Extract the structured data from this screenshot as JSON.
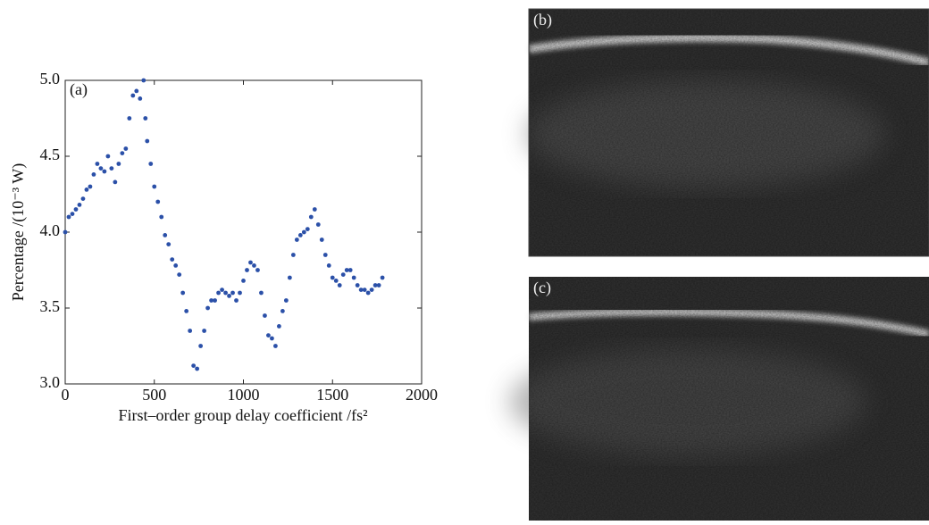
{
  "chart_data": {
    "type": "scatter",
    "panel_label": "(a)",
    "x_label": "First–order group delay coefficient /fs²",
    "y_label": "Percentage /(10⁻³ W)",
    "color": "#2b50a8",
    "xlim": [
      0,
      2000
    ],
    "xticks": [
      0,
      500,
      1000,
      1500,
      2000
    ],
    "ylim": [
      3,
      5
    ],
    "yticks": [
      {
        "value": 3,
        "label": "3.0"
      },
      3.5,
      {
        "value": 4,
        "label": "4.0"
      },
      4.5,
      {
        "value": 5,
        "label": "5.0"
      }
    ],
    "x": [
      0,
      20,
      40,
      60,
      80,
      100,
      120,
      140,
      160,
      180,
      200,
      220,
      240,
      260,
      280,
      300,
      320,
      340,
      360,
      380,
      400,
      420,
      440,
      450,
      460,
      480,
      500,
      520,
      540,
      560,
      580,
      600,
      620,
      640,
      660,
      680,
      700,
      720,
      740,
      760,
      780,
      800,
      820,
      840,
      860,
      880,
      900,
      920,
      940,
      960,
      980,
      1000,
      1020,
      1040,
      1060,
      1080,
      1100,
      1120,
      1140,
      1160,
      1180,
      1200,
      1220,
      1240,
      1260,
      1280,
      1300,
      1320,
      1340,
      1360,
      1380,
      1400,
      1420,
      1440,
      1460,
      1480,
      1500,
      1520,
      1540,
      1560,
      1580,
      1600,
      1620,
      1640,
      1660,
      1680,
      1700,
      1720,
      1740,
      1760,
      1780
    ],
    "y": [
      4.0,
      4.1,
      4.12,
      4.15,
      4.18,
      4.22,
      4.28,
      4.3,
      4.38,
      4.45,
      4.42,
      4.4,
      4.5,
      4.42,
      4.33,
      4.45,
      4.52,
      4.55,
      4.75,
      4.9,
      4.93,
      4.88,
      5.0,
      4.75,
      4.6,
      4.45,
      4.3,
      4.2,
      4.1,
      3.98,
      3.92,
      3.82,
      3.78,
      3.72,
      3.6,
      3.48,
      3.35,
      3.12,
      3.1,
      3.25,
      3.35,
      3.5,
      3.55,
      3.55,
      3.6,
      3.62,
      3.6,
      3.58,
      3.6,
      3.55,
      3.6,
      3.68,
      3.75,
      3.8,
      3.78,
      3.75,
      3.6,
      3.45,
      3.32,
      3.3,
      3.25,
      3.38,
      3.48,
      3.55,
      3.7,
      3.85,
      3.95,
      3.98,
      4.0,
      4.02,
      4.1,
      4.15,
      4.05,
      3.95,
      3.85,
      3.78,
      3.7,
      3.68,
      3.65,
      3.72,
      3.75,
      3.75,
      3.7,
      3.65,
      3.62,
      3.62,
      3.6,
      3.62,
      3.65,
      3.65,
      3.7
    ]
  },
  "images": [
    {
      "label": "(b)"
    },
    {
      "label": "(c)"
    }
  ]
}
